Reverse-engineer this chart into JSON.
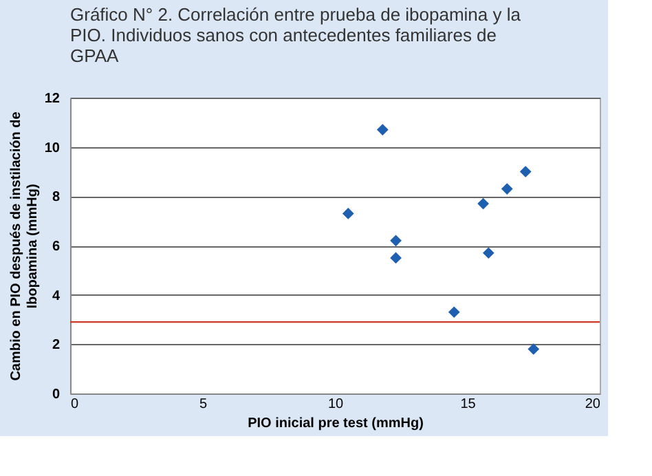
{
  "chart_data": {
    "type": "scatter",
    "title": "Gráfico N° 2. Correlación entre prueba de ibopamina y la PIO. Individuos sanos con antecedentes  familiares de GPAA",
    "xlabel": "PIO inicial pre test (mmHg)",
    "ylabel": "Cambio en PIO después de instilación de Ibopamina (mmHg)",
    "x": [
      10.5,
      11.8,
      12.3,
      12.3,
      14.5,
      15.6,
      15.8,
      16.5,
      17.2,
      17.5
    ],
    "series": [
      {
        "color": "#1f5fb0",
        "values": [
          7.3,
          10.7,
          6.2,
          5.5,
          3.3,
          7.7,
          5.7,
          8.3,
          9.0,
          1.8
        ]
      }
    ],
    "marker": "diamond",
    "xlim": [
      0,
      20
    ],
    "xticks": [
      0,
      5,
      10,
      15,
      20
    ],
    "ylim": [
      0,
      12
    ],
    "yticks": [
      0,
      2,
      4,
      6,
      8,
      10,
      12
    ],
    "grid": "y",
    "ref_lines": [
      {
        "axis": "y",
        "value": 2.9,
        "color": "#d03a2a",
        "line_style": "solid"
      }
    ]
  }
}
